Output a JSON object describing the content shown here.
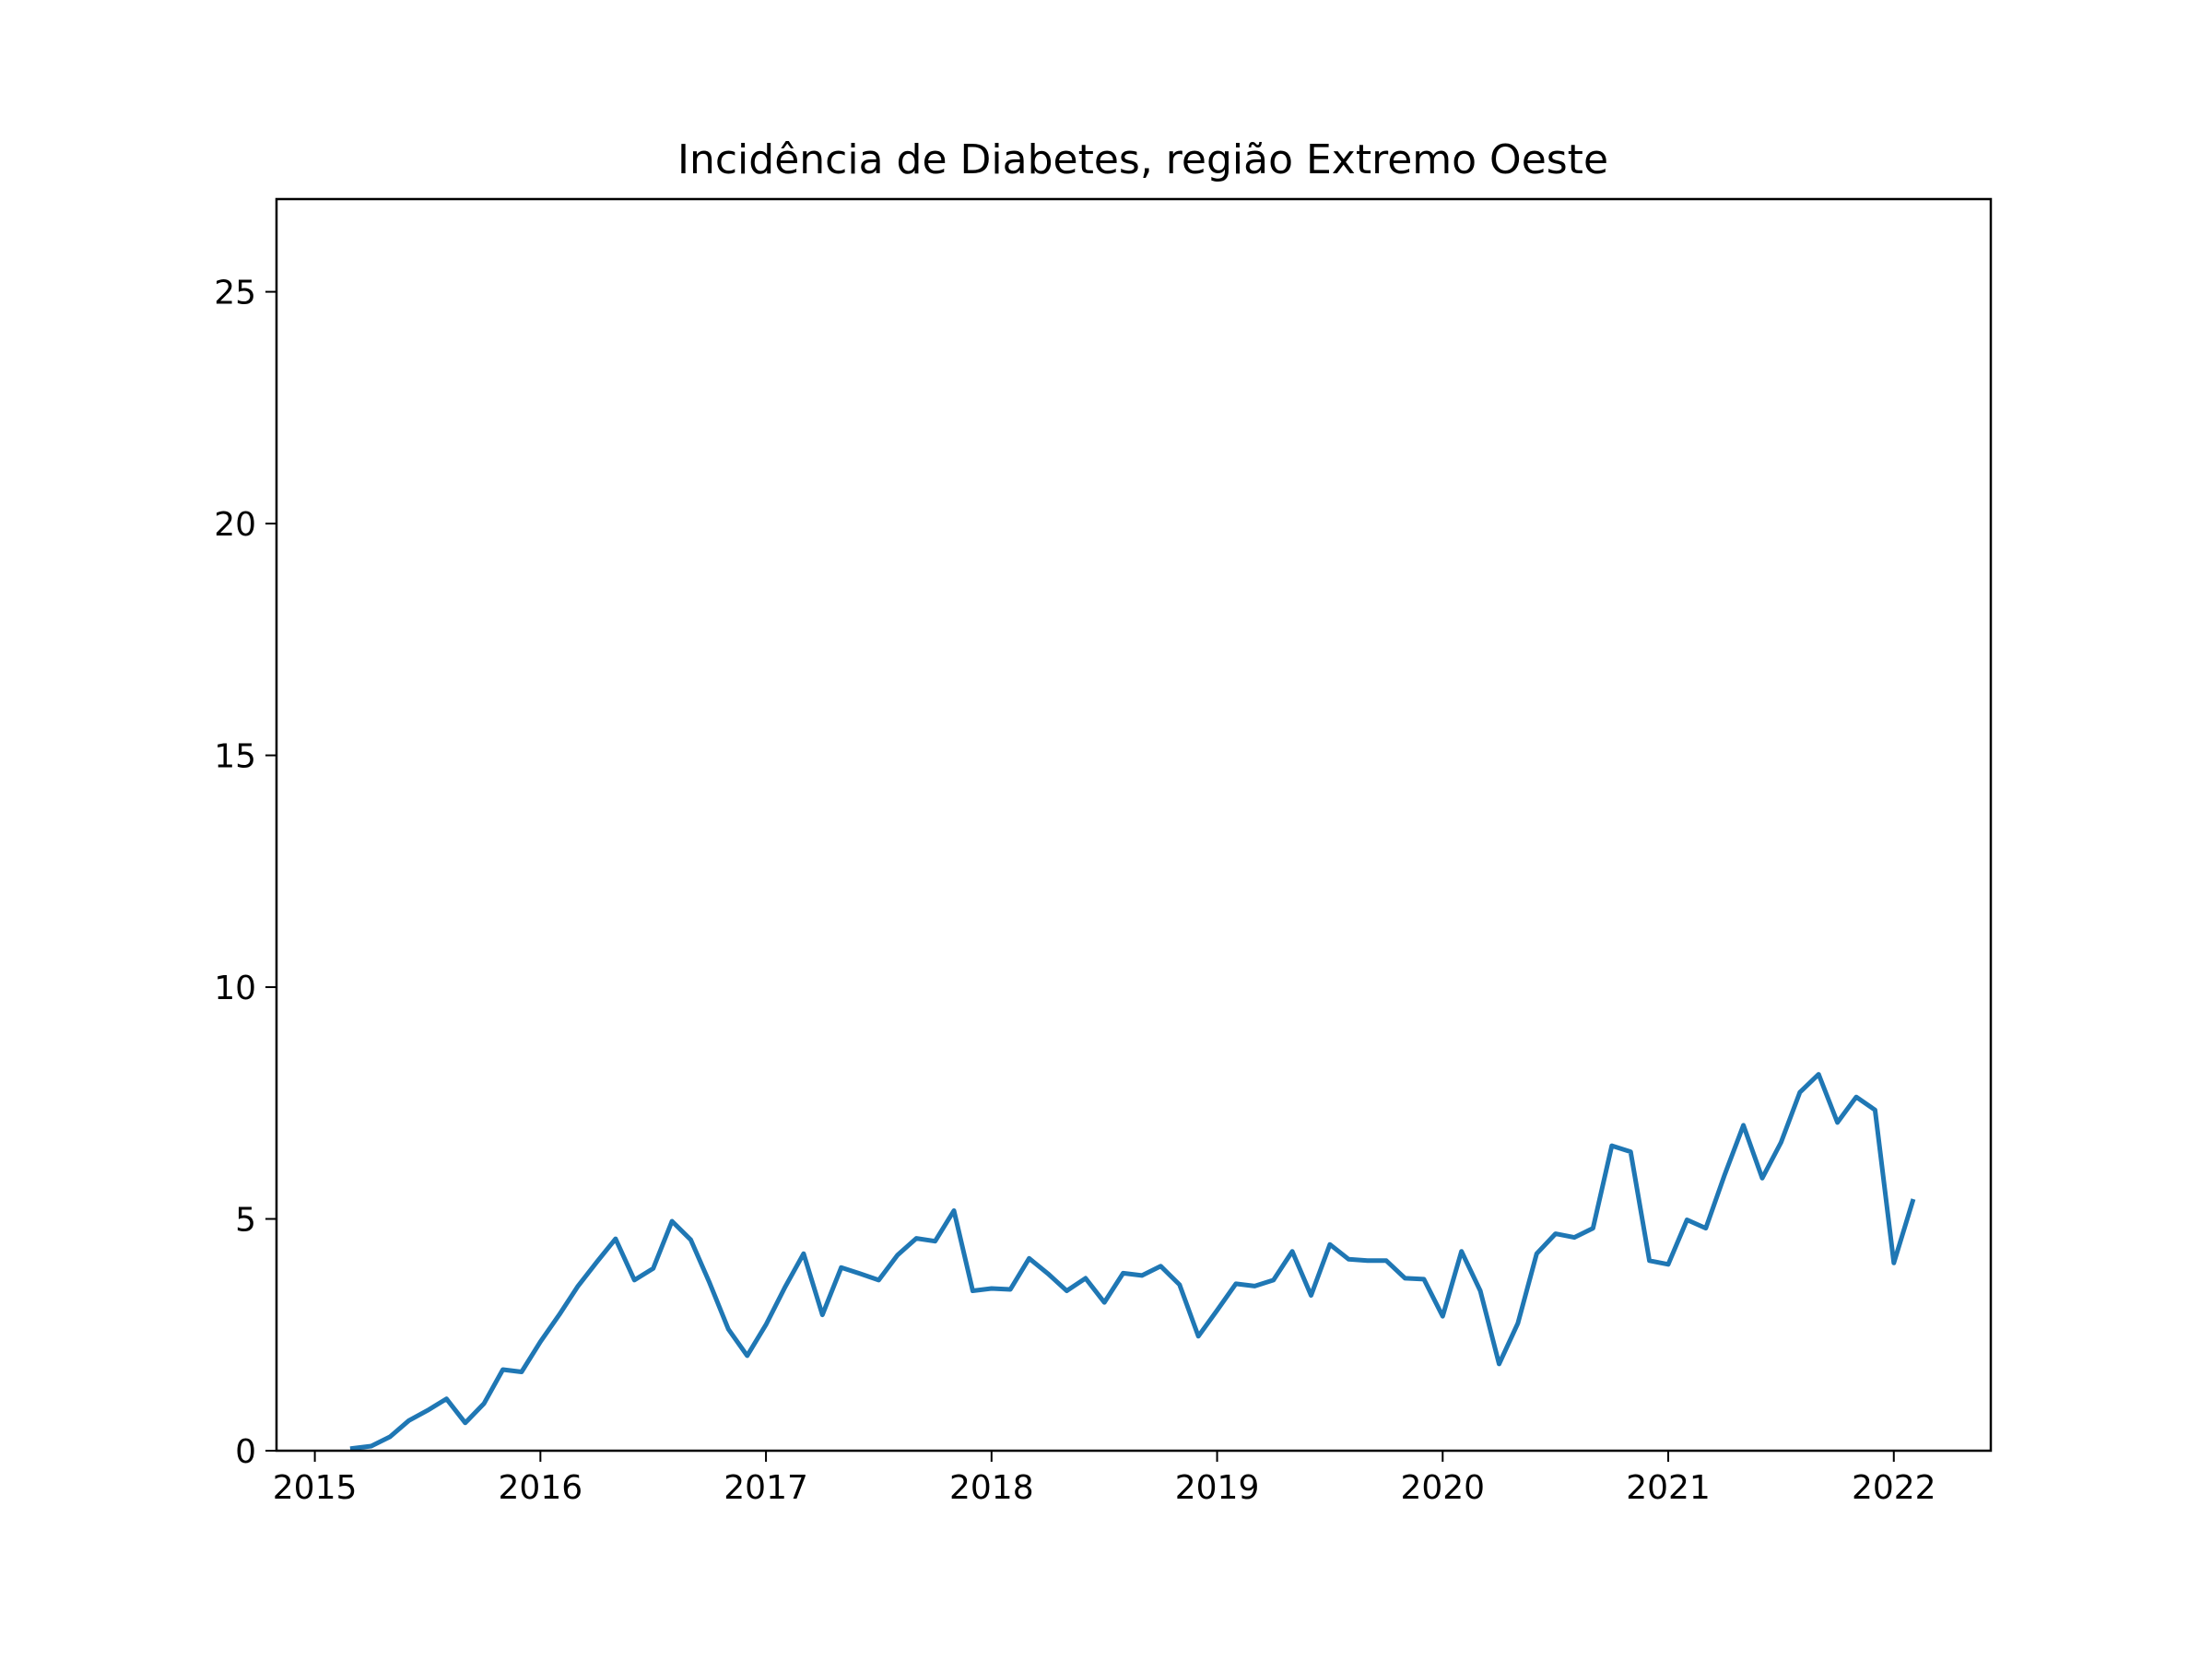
{
  "chart_data": {
    "type": "line",
    "title": "Incidência de Diabetes, região Extremo Oeste",
    "xlabel": "",
    "ylabel": "",
    "xlim": [
      2014.83,
      2022.43
    ],
    "ylim": [
      0,
      27
    ],
    "x_ticks": [
      2015,
      2016,
      2017,
      2018,
      2019,
      2020,
      2021,
      2022
    ],
    "y_ticks": [
      0,
      5,
      10,
      15,
      20,
      25
    ],
    "grid": false,
    "legend": "none",
    "colors": {
      "series": "#1f77b4",
      "axes": "#000000",
      "background": "#ffffff"
    },
    "series": [
      {
        "x": [
          "2015-03",
          "2015-04",
          "2015-05",
          "2015-06",
          "2015-07",
          "2015-08",
          "2015-09",
          "2015-10",
          "2015-11",
          "2015-12",
          "2016-01",
          "2016-02",
          "2016-03",
          "2016-04",
          "2016-05",
          "2016-06",
          "2016-07",
          "2016-08",
          "2016-09",
          "2016-10",
          "2016-11",
          "2016-12",
          "2017-01",
          "2017-02",
          "2017-03",
          "2017-04",
          "2017-05",
          "2017-06",
          "2017-07",
          "2017-08",
          "2017-09",
          "2017-10",
          "2017-11",
          "2017-12",
          "2018-01",
          "2018-02",
          "2018-03",
          "2018-04",
          "2018-05",
          "2018-06",
          "2018-07",
          "2018-08",
          "2018-09",
          "2018-10",
          "2018-11",
          "2018-12",
          "2019-01",
          "2019-02",
          "2019-03",
          "2019-04",
          "2019-05",
          "2019-06",
          "2019-07",
          "2019-08",
          "2019-09",
          "2019-10",
          "2019-11",
          "2019-12",
          "2020-01",
          "2020-02",
          "2020-03",
          "2020-04",
          "2020-05",
          "2020-06",
          "2020-07",
          "2020-08",
          "2020-09",
          "2020-10",
          "2020-11",
          "2020-12",
          "2021-01",
          "2021-02",
          "2021-03",
          "2021-04",
          "2021-05",
          "2021-06",
          "2021-07",
          "2021-08",
          "2021-09",
          "2021-10",
          "2021-11",
          "2021-12",
          "2022-01",
          "2022-02"
        ],
        "values": [
          0.05,
          0.1,
          0.3,
          0.65,
          0.87,
          1.12,
          0.6,
          1.02,
          1.75,
          1.7,
          2.35,
          2.93,
          3.55,
          4.07,
          4.57,
          3.68,
          3.93,
          4.95,
          4.55,
          3.62,
          2.62,
          2.05,
          2.72,
          3.52,
          4.25,
          2.93,
          3.95,
          3.82,
          3.68,
          4.22,
          4.58,
          4.52,
          5.18,
          3.45,
          3.5,
          3.48,
          4.15,
          3.82,
          3.45,
          3.72,
          3.2,
          3.83,
          3.78,
          3.98,
          3.58,
          2.47,
          3.03,
          3.6,
          3.55,
          3.68,
          4.3,
          3.35,
          4.45,
          4.13,
          4.1,
          4.1,
          3.72,
          3.7,
          2.9,
          4.3,
          3.45,
          1.87,
          2.75,
          4.25,
          4.68,
          4.6,
          4.8,
          6.58,
          6.45,
          4.1,
          4.02,
          4.98,
          4.8,
          5.95,
          7.02,
          5.88,
          6.65,
          7.73,
          8.12,
          7.08,
          7.63,
          7.35,
          4.05,
          5.38
        ]
      }
    ]
  }
}
